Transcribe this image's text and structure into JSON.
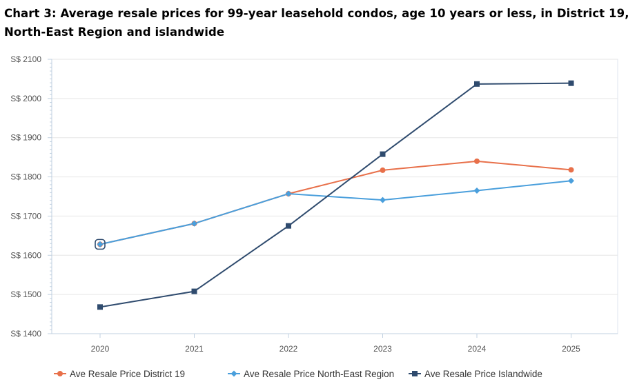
{
  "chart_data": {
    "type": "line",
    "title": "Chart 3: Average resale prices for 99-year leasehold condos, age 10 years or less, in District 19, North-East Region and islandwide",
    "xlabel": "",
    "ylabel": "",
    "categories": [
      "2020",
      "2021",
      "2022",
      "2023",
      "2024",
      "2025"
    ],
    "ylim": [
      1400,
      2100
    ],
    "yticks": [
      1400,
      1500,
      1600,
      1700,
      1800,
      1900,
      2000,
      2100
    ],
    "ytick_prefix": "S$ ",
    "grid": true,
    "legend_position": "bottom",
    "series": [
      {
        "name": "Ave Resale Price District 19",
        "color": "#e8704a",
        "marker": "circle",
        "values": [
          1628,
          1681,
          1757,
          1817,
          1840,
          1818
        ]
      },
      {
        "name": "Ave Resale Price North-East Region",
        "color": "#4a9fdc",
        "marker": "diamond",
        "values": [
          1628,
          1681,
          1757,
          1741,
          1765,
          1790
        ]
      },
      {
        "name": "Ave Resale Price Islandwide",
        "color": "#2f4b6e",
        "marker": "square",
        "values": [
          1468,
          1508,
          1675,
          1858,
          2037,
          2039
        ]
      }
    ]
  }
}
